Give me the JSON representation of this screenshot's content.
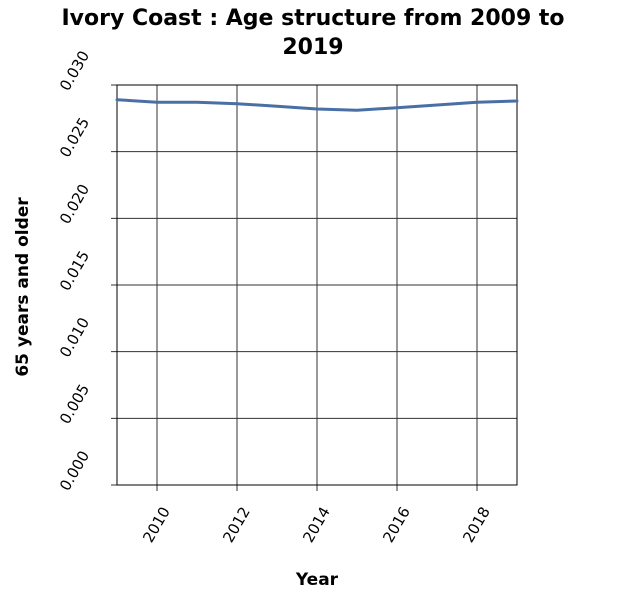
{
  "chart_data": {
    "type": "line",
    "title_line1": "Ivory Coast : Age structure from 2009 to",
    "title_line2": "2019",
    "xlabel": "Year",
    "ylabel": "65 years and older",
    "xlim": [
      2009,
      2019
    ],
    "ylim": [
      0,
      0.03
    ],
    "x_ticks": [
      2010,
      2012,
      2014,
      2016,
      2018
    ],
    "x_tick_labels": [
      "2010",
      "2012",
      "2014",
      "2016",
      "2018"
    ],
    "y_ticks": [
      0,
      0.005,
      0.01,
      0.015,
      0.02,
      0.025,
      0.03
    ],
    "y_tick_labels": [
      "0.000",
      "0.005",
      "0.010",
      "0.015",
      "0.020",
      "0.025",
      "0.030"
    ],
    "grid": true,
    "line_color": "#4a6fa5",
    "series": [
      {
        "x": [
          2009,
          2010,
          2011,
          2012,
          2013,
          2014,
          2015,
          2016,
          2017,
          2018,
          2019
        ],
        "values": [
          0.0289,
          0.0287,
          0.0287,
          0.0286,
          0.0284,
          0.0282,
          0.0281,
          0.0283,
          0.0285,
          0.0287,
          0.0288
        ]
      }
    ]
  }
}
